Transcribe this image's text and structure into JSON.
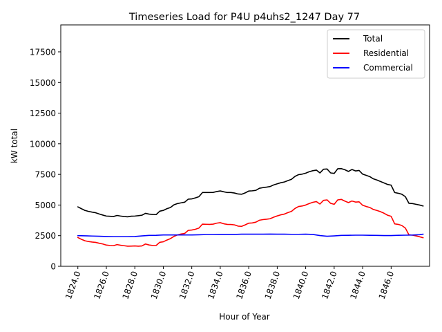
{
  "chart_data": {
    "type": "line",
    "title": "Timeseries Load for P4U p4uhs2_1247  Day 77",
    "xlabel": "Hour of Year",
    "ylabel": "kW total",
    "xlim": [
      1822.8,
      1848.7
    ],
    "ylim": [
      0,
      19700
    ],
    "xticks": [
      1824,
      1826,
      1828,
      1830,
      1832,
      1834,
      1836,
      1838,
      1840,
      1842,
      1844,
      1846
    ],
    "xtick_labels": [
      "1824.0",
      "1826.0",
      "1828.0",
      "1830.0",
      "1832.0",
      "1834.0",
      "1836.0",
      "1838.0",
      "1840.0",
      "1842.0",
      "1844.0",
      "1846.0"
    ],
    "yticks": [
      0,
      2500,
      5000,
      7500,
      10000,
      12500,
      15000,
      17500
    ],
    "ytick_labels": [
      "0",
      "2500",
      "5000",
      "7500",
      "10000",
      "12500",
      "15000",
      "17500"
    ],
    "legend_position": "top-right",
    "grid": false,
    "series": [
      {
        "name": "Total",
        "color": "#000000",
        "points": [
          [
            1824.0,
            4850
          ],
          [
            1824.25,
            4700
          ],
          [
            1824.5,
            4560
          ],
          [
            1824.75,
            4480
          ],
          [
            1825.0,
            4420
          ],
          [
            1825.25,
            4370
          ],
          [
            1825.5,
            4270
          ],
          [
            1825.75,
            4180
          ],
          [
            1826.0,
            4100
          ],
          [
            1826.25,
            4080
          ],
          [
            1826.5,
            4060
          ],
          [
            1826.75,
            4150
          ],
          [
            1827.0,
            4100
          ],
          [
            1827.25,
            4060
          ],
          [
            1827.5,
            4040
          ],
          [
            1827.75,
            4090
          ],
          [
            1828.0,
            4100
          ],
          [
            1828.25,
            4130
          ],
          [
            1828.5,
            4170
          ],
          [
            1828.75,
            4320
          ],
          [
            1829.0,
            4260
          ],
          [
            1829.25,
            4230
          ],
          [
            1829.5,
            4220
          ],
          [
            1829.75,
            4500
          ],
          [
            1830.0,
            4560
          ],
          [
            1830.25,
            4700
          ],
          [
            1830.5,
            4800
          ],
          [
            1830.75,
            5020
          ],
          [
            1831.0,
            5120
          ],
          [
            1831.25,
            5180
          ],
          [
            1831.5,
            5230
          ],
          [
            1831.75,
            5480
          ],
          [
            1832.0,
            5500
          ],
          [
            1832.25,
            5580
          ],
          [
            1832.5,
            5680
          ],
          [
            1832.75,
            6020
          ],
          [
            1833.0,
            6020
          ],
          [
            1833.25,
            6020
          ],
          [
            1833.5,
            6030
          ],
          [
            1833.75,
            6100
          ],
          [
            1834.0,
            6150
          ],
          [
            1834.25,
            6080
          ],
          [
            1834.5,
            6020
          ],
          [
            1834.75,
            6020
          ],
          [
            1835.0,
            5980
          ],
          [
            1835.25,
            5900
          ],
          [
            1835.5,
            5880
          ],
          [
            1835.75,
            5990
          ],
          [
            1836.0,
            6140
          ],
          [
            1836.25,
            6160
          ],
          [
            1836.5,
            6200
          ],
          [
            1836.75,
            6370
          ],
          [
            1837.0,
            6420
          ],
          [
            1837.25,
            6460
          ],
          [
            1837.5,
            6510
          ],
          [
            1837.75,
            6640
          ],
          [
            1838.0,
            6730
          ],
          [
            1838.25,
            6820
          ],
          [
            1838.5,
            6880
          ],
          [
            1838.75,
            6990
          ],
          [
            1839.0,
            7100
          ],
          [
            1839.25,
            7340
          ],
          [
            1839.5,
            7480
          ],
          [
            1839.75,
            7520
          ],
          [
            1840.0,
            7600
          ],
          [
            1840.25,
            7720
          ],
          [
            1840.5,
            7800
          ],
          [
            1840.75,
            7850
          ],
          [
            1841.0,
            7620
          ],
          [
            1841.25,
            7920
          ],
          [
            1841.5,
            7940
          ],
          [
            1841.75,
            7620
          ],
          [
            1842.0,
            7580
          ],
          [
            1842.25,
            7960
          ],
          [
            1842.5,
            7970
          ],
          [
            1842.75,
            7880
          ],
          [
            1843.0,
            7740
          ],
          [
            1843.25,
            7900
          ],
          [
            1843.5,
            7780
          ],
          [
            1843.75,
            7820
          ],
          [
            1844.0,
            7520
          ],
          [
            1844.25,
            7420
          ],
          [
            1844.5,
            7320
          ],
          [
            1844.75,
            7140
          ],
          [
            1845.0,
            7040
          ],
          [
            1845.25,
            6920
          ],
          [
            1845.5,
            6800
          ],
          [
            1845.75,
            6680
          ],
          [
            1846.0,
            6620
          ],
          [
            1846.25,
            6020
          ],
          [
            1846.5,
            5960
          ],
          [
            1846.75,
            5880
          ],
          [
            1847.0,
            5680
          ],
          [
            1847.25,
            5140
          ],
          [
            1847.5,
            5120
          ],
          [
            1847.75,
            5060
          ],
          [
            1848.0,
            5000
          ],
          [
            1848.25,
            4920
          ]
        ]
      },
      {
        "name": "Residential",
        "color": "#ff0000",
        "points": [
          [
            1824.0,
            2350
          ],
          [
            1824.25,
            2200
          ],
          [
            1824.5,
            2080
          ],
          [
            1824.75,
            2020
          ],
          [
            1825.0,
            1980
          ],
          [
            1825.25,
            1950
          ],
          [
            1825.5,
            1880
          ],
          [
            1825.75,
            1820
          ],
          [
            1826.0,
            1730
          ],
          [
            1826.25,
            1700
          ],
          [
            1826.5,
            1680
          ],
          [
            1826.75,
            1770
          ],
          [
            1827.0,
            1720
          ],
          [
            1827.25,
            1680
          ],
          [
            1827.5,
            1640
          ],
          [
            1827.75,
            1650
          ],
          [
            1828.0,
            1660
          ],
          [
            1828.25,
            1640
          ],
          [
            1828.5,
            1660
          ],
          [
            1828.75,
            1820
          ],
          [
            1829.0,
            1740
          ],
          [
            1829.25,
            1700
          ],
          [
            1829.5,
            1700
          ],
          [
            1829.75,
            1960
          ],
          [
            1830.0,
            2000
          ],
          [
            1830.25,
            2140
          ],
          [
            1830.5,
            2260
          ],
          [
            1830.75,
            2440
          ],
          [
            1831.0,
            2560
          ],
          [
            1831.25,
            2640
          ],
          [
            1831.5,
            2680
          ],
          [
            1831.75,
            2930
          ],
          [
            1832.0,
            2960
          ],
          [
            1832.25,
            3020
          ],
          [
            1832.5,
            3120
          ],
          [
            1832.75,
            3440
          ],
          [
            1833.0,
            3430
          ],
          [
            1833.25,
            3420
          ],
          [
            1833.5,
            3440
          ],
          [
            1833.75,
            3520
          ],
          [
            1834.0,
            3560
          ],
          [
            1834.25,
            3470
          ],
          [
            1834.5,
            3420
          ],
          [
            1834.75,
            3410
          ],
          [
            1835.0,
            3380
          ],
          [
            1835.25,
            3280
          ],
          [
            1835.5,
            3260
          ],
          [
            1835.75,
            3380
          ],
          [
            1836.0,
            3520
          ],
          [
            1836.25,
            3540
          ],
          [
            1836.5,
            3600
          ],
          [
            1836.75,
            3760
          ],
          [
            1837.0,
            3810
          ],
          [
            1837.25,
            3840
          ],
          [
            1837.5,
            3880
          ],
          [
            1837.75,
            4010
          ],
          [
            1838.0,
            4110
          ],
          [
            1838.25,
            4200
          ],
          [
            1838.5,
            4260
          ],
          [
            1838.75,
            4380
          ],
          [
            1839.0,
            4480
          ],
          [
            1839.25,
            4720
          ],
          [
            1839.5,
            4880
          ],
          [
            1839.75,
            4920
          ],
          [
            1840.0,
            5000
          ],
          [
            1840.25,
            5120
          ],
          [
            1840.5,
            5220
          ],
          [
            1840.75,
            5280
          ],
          [
            1841.0,
            5080
          ],
          [
            1841.25,
            5380
          ],
          [
            1841.5,
            5420
          ],
          [
            1841.75,
            5140
          ],
          [
            1842.0,
            5060
          ],
          [
            1842.25,
            5420
          ],
          [
            1842.5,
            5460
          ],
          [
            1842.75,
            5320
          ],
          [
            1843.0,
            5200
          ],
          [
            1843.25,
            5330
          ],
          [
            1843.5,
            5240
          ],
          [
            1843.75,
            5260
          ],
          [
            1844.0,
            4980
          ],
          [
            1844.25,
            4880
          ],
          [
            1844.5,
            4800
          ],
          [
            1844.75,
            4640
          ],
          [
            1845.0,
            4560
          ],
          [
            1845.25,
            4460
          ],
          [
            1845.5,
            4330
          ],
          [
            1845.75,
            4170
          ],
          [
            1846.0,
            4080
          ],
          [
            1846.25,
            3460
          ],
          [
            1846.5,
            3420
          ],
          [
            1846.75,
            3330
          ],
          [
            1847.0,
            3120
          ],
          [
            1847.25,
            2570
          ],
          [
            1847.5,
            2540
          ],
          [
            1847.75,
            2480
          ],
          [
            1848.0,
            2410
          ],
          [
            1848.25,
            2330
          ]
        ]
      },
      {
        "name": "Commercial",
        "color": "#0000ff",
        "points": [
          [
            1824.0,
            2500
          ],
          [
            1824.5,
            2490
          ],
          [
            1825.0,
            2470
          ],
          [
            1825.5,
            2450
          ],
          [
            1826.0,
            2430
          ],
          [
            1826.5,
            2420
          ],
          [
            1827.0,
            2420
          ],
          [
            1827.5,
            2420
          ],
          [
            1828.0,
            2430
          ],
          [
            1828.5,
            2480
          ],
          [
            1829.0,
            2520
          ],
          [
            1829.5,
            2530
          ],
          [
            1830.0,
            2560
          ],
          [
            1830.5,
            2560
          ],
          [
            1831.0,
            2560
          ],
          [
            1831.5,
            2560
          ],
          [
            1832.0,
            2560
          ],
          [
            1832.5,
            2570
          ],
          [
            1833.0,
            2590
          ],
          [
            1833.5,
            2590
          ],
          [
            1834.0,
            2600
          ],
          [
            1834.5,
            2600
          ],
          [
            1835.0,
            2600
          ],
          [
            1835.5,
            2620
          ],
          [
            1836.0,
            2620
          ],
          [
            1836.5,
            2620
          ],
          [
            1837.0,
            2620
          ],
          [
            1837.5,
            2630
          ],
          [
            1838.0,
            2620
          ],
          [
            1838.5,
            2620
          ],
          [
            1839.0,
            2610
          ],
          [
            1839.5,
            2610
          ],
          [
            1840.0,
            2620
          ],
          [
            1840.5,
            2600
          ],
          [
            1841.0,
            2510
          ],
          [
            1841.5,
            2450
          ],
          [
            1842.0,
            2480
          ],
          [
            1842.5,
            2520
          ],
          [
            1843.0,
            2530
          ],
          [
            1843.5,
            2540
          ],
          [
            1844.0,
            2540
          ],
          [
            1844.5,
            2530
          ],
          [
            1845.0,
            2520
          ],
          [
            1845.5,
            2510
          ],
          [
            1846.0,
            2510
          ],
          [
            1846.5,
            2530
          ],
          [
            1847.0,
            2540
          ],
          [
            1847.5,
            2550
          ],
          [
            1848.0,
            2580
          ],
          [
            1848.25,
            2620
          ]
        ]
      }
    ]
  }
}
